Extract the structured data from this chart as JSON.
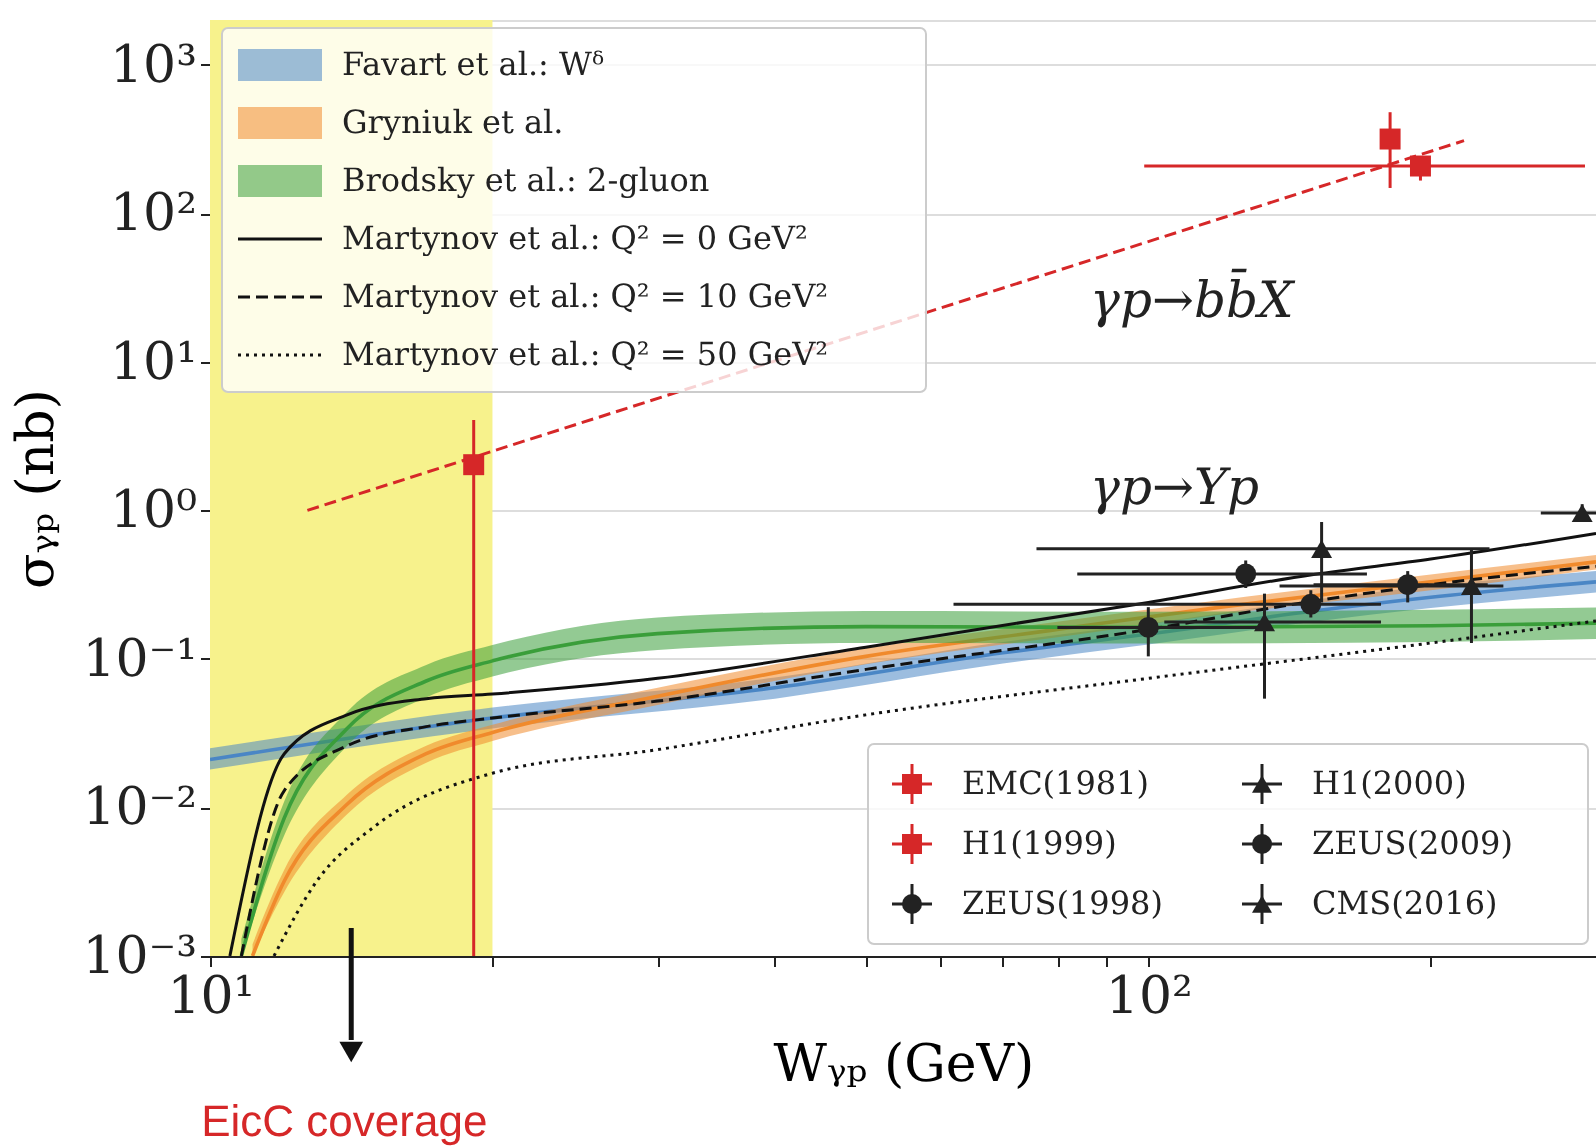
{
  "chart_data": {
    "type": "line",
    "xlabel": "Wᵧₚ (GeV)",
    "ylabel": "σᵧₚ (nb)",
    "log": "xy",
    "grid": "y",
    "legend": "top left",
    "xlim": [
      10,
      300
    ],
    "ylim": [
      0.001,
      2000
    ],
    "xticks": [
      {
        "value": 10,
        "label": "10¹"
      },
      {
        "value": 20,
        "label": null
      },
      {
        "value": 30,
        "label": null
      },
      {
        "value": 40,
        "label": null
      },
      {
        "value": 50,
        "label": null
      },
      {
        "value": 60,
        "label": null
      },
      {
        "value": 70,
        "label": null
      },
      {
        "value": 80,
        "label": null
      },
      {
        "value": 90,
        "label": null
      },
      {
        "value": 100,
        "label": "10²"
      },
      {
        "value": 200,
        "label": null
      },
      {
        "value": 300,
        "label": null
      }
    ],
    "yticks": [
      {
        "value": 0.001,
        "label": "10⁻³"
      },
      {
        "value": 0.01,
        "label": "10⁻²"
      },
      {
        "value": 0.1,
        "label": "10⁻¹"
      },
      {
        "value": 1,
        "label": "10⁰"
      },
      {
        "value": 10,
        "label": "10¹"
      },
      {
        "value": 100,
        "label": "10²"
      },
      {
        "value": 1000,
        "label": "10³"
      }
    ],
    "bands": [
      {
        "axis": "x",
        "from": 10,
        "to": 20,
        "label": "EicC coverage",
        "color": "#f7f28c"
      }
    ],
    "annotations": [
      "γp→bb̄X",
      "γp→Υp"
    ],
    "series": [
      {
        "name": "Favart et al.: Wᵟ",
        "color": "#4a86c5",
        "x": [
          10,
          20,
          40,
          70,
          100,
          150,
          200,
          300
        ],
        "values": [
          0.021,
          0.04,
          0.064,
          0.11,
          0.147,
          0.21,
          0.26,
          0.33
        ],
        "lower": [
          0.018,
          0.034,
          0.054,
          0.093,
          0.125,
          0.178,
          0.22,
          0.28
        ],
        "upper": [
          0.025,
          0.047,
          0.075,
          0.13,
          0.173,
          0.25,
          0.31,
          0.39
        ]
      },
      {
        "name": "Gryniuk et al.",
        "color": "#f08a2c",
        "x": [
          11.1,
          12,
          14,
          17,
          20,
          30,
          50,
          80,
          120,
          200,
          300
        ],
        "values": [
          0.001,
          0.0032,
          0.0105,
          0.023,
          0.032,
          0.056,
          0.104,
          0.158,
          0.224,
          0.33,
          0.45
        ],
        "lower": [
          0.001,
          0.0027,
          0.009,
          0.02,
          0.028,
          0.049,
          0.092,
          0.14,
          0.2,
          0.29,
          0.4
        ],
        "upper": [
          0.0012,
          0.0038,
          0.0122,
          0.026,
          0.036,
          0.064,
          0.118,
          0.178,
          0.25,
          0.37,
          0.5
        ]
      },
      {
        "name": "Brodsky et al.: 2-gluon",
        "color": "#3a9e3a",
        "x": [
          10.8,
          12,
          14,
          17,
          20,
          30,
          50,
          100,
          200,
          300
        ],
        "values": [
          0.001,
          0.0085,
          0.034,
          0.071,
          0.097,
          0.148,
          0.165,
          0.163,
          0.167,
          0.174
        ],
        "lower": [
          0.001,
          0.0065,
          0.026,
          0.055,
          0.076,
          0.115,
          0.128,
          0.127,
          0.13,
          0.136
        ],
        "upper": [
          0.0013,
          0.011,
          0.044,
          0.091,
          0.124,
          0.19,
          0.21,
          0.208,
          0.214,
          0.222
        ]
      },
      {
        "name": "Martynov et al.: Q² = 0 GeV²",
        "line_style": "solid",
        "color": "#111111",
        "x": [
          10.5,
          12,
          14,
          17,
          20,
          30,
          50,
          100,
          150,
          200,
          300
        ],
        "values": [
          0.001,
          0.023,
          0.042,
          0.054,
          0.058,
          0.074,
          0.12,
          0.24,
          0.37,
          0.47,
          0.7
        ]
      },
      {
        "name": "Martynov et al.: Q² = 10 GeV²",
        "line_style": "dashed",
        "color": "#111111",
        "x": [
          10.8,
          12,
          14,
          17,
          20,
          30,
          50,
          100,
          150,
          200,
          300
        ],
        "values": [
          0.001,
          0.013,
          0.026,
          0.035,
          0.04,
          0.052,
          0.085,
          0.158,
          0.245,
          0.316,
          0.42
        ]
      },
      {
        "name": "Martynov et al.: Q² = 50 GeV²",
        "line_style": "dotted",
        "color": "#111111",
        "x": [
          11.7,
          13,
          15,
          20,
          30,
          50,
          100,
          200,
          300
        ],
        "values": [
          0.001,
          0.0032,
          0.0075,
          0.017,
          0.0245,
          0.042,
          0.074,
          0.128,
          0.18
        ]
      },
      {
        "line_style": "dashed",
        "color": "#d62728",
        "x": [
          12.7,
          217
        ],
        "values": [
          1.0,
          308
        ]
      },
      {
        "name": "EMC(1981)",
        "type": "scatter",
        "marker": "square",
        "color": "#d62728",
        "x": [
          19.1
        ],
        "values": [
          2.03
        ],
        "errors": [
          [
            0.001,
            4.06
          ]
        ]
      },
      {
        "name": "H1(1999)",
        "type": "scatter",
        "marker": "square",
        "color": "#d62728",
        "x": [
          181,
          195
        ],
        "values": [
          316,
          208
        ],
        "errors": [
          [
            148,
            479
          ],
          [
            166,
            240
          ]
        ],
        "xerrors": [
          null,
          [
            99,
            292
          ]
        ]
      },
      {
        "name": "ZEUS(1998)",
        "type": "scatter",
        "marker": "circle",
        "color": "#222222",
        "x": [
          127
        ],
        "values": [
          0.373
        ],
        "errors": [
          [
            0.3,
            0.46
          ]
        ],
        "xerrors": [
          [
            84,
            171
          ]
        ]
      },
      {
        "name": "H1(2000)",
        "type": "scatter",
        "marker": "triangle",
        "color": "#222222",
        "x": [
          153
        ],
        "values": [
          0.551
        ],
        "errors": [
          [
            0.24,
            0.835
          ]
        ],
        "xerrors": [
          [
            76,
            231
          ]
        ]
      },
      {
        "name": "ZEUS(2009)",
        "type": "scatter",
        "marker": "circle",
        "color": "#222222",
        "x": [
          100,
          149,
          189
        ],
        "values": [
          0.163,
          0.233,
          0.316
        ],
        "errors": [
          [
            0.104,
            0.223
          ],
          [
            0.19,
            0.29
          ],
          [
            0.24,
            0.39
          ]
        ],
        "xerrors": [
          [
            80,
            135
          ],
          [
            62,
            177
          ],
          [
            150,
            230
          ]
        ]
      },
      {
        "name": "CMS(2016)",
        "type": "scatter",
        "marker": "triangle",
        "color": "#222222",
        "x": [
          133,
          221,
          290
        ],
        "values": [
          0.177,
          0.31,
          0.96
        ],
        "errors": [
          [
            0.054,
            0.275
          ],
          [
            0.128,
            0.55
          ],
          [
            0.85,
            1.1
          ]
        ],
        "xerrors": [
          [
            104,
            177
          ],
          [
            138,
            239
          ],
          [
            262,
            300
          ]
        ]
      }
    ]
  }
}
